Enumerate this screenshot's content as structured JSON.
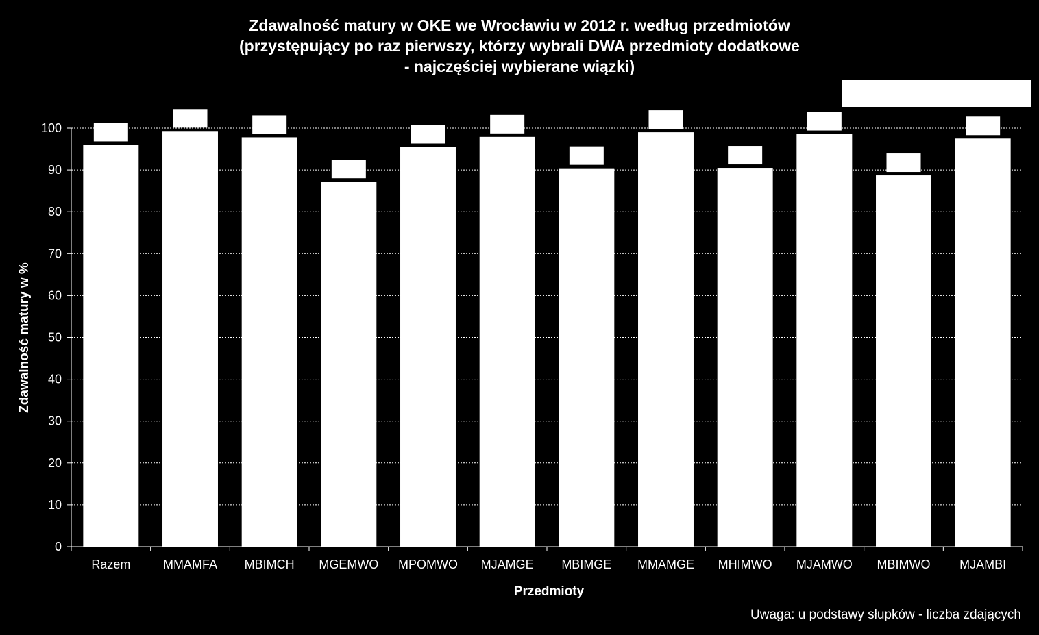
{
  "chart_data": {
    "type": "bar",
    "title": "Zdawalność matury w OKE we Wrocławiu w 2012 r. według przedmiotów\n(przystępujący po raz pierwszy, którzy wybrali DWA przedmioty dodatkowe\n- najczęściej wybierane wiązki)",
    "xlabel": "Przedmioty",
    "ylabel": "Zdawalność matury w %",
    "categories": [
      "Razem",
      "MMAMFA",
      "MBIMCH",
      "MGEMWO",
      "MPOMWO",
      "MJAMGE",
      "MBIMGE",
      "MMAMGE",
      "MHIMWO",
      "MJAMWO",
      "MBIMWO",
      "MJAMBI"
    ],
    "values": [
      96.0,
      99.3,
      97.8,
      87.2,
      95.5,
      97.9,
      90.4,
      99.0,
      90.5,
      98.6,
      88.7,
      97.5
    ],
    "ylim": [
      0,
      100
    ],
    "yticks": [
      0,
      10,
      20,
      30,
      40,
      50,
      60,
      70,
      80,
      90,
      100
    ],
    "grid": true,
    "bar_color": "#ffffff",
    "background": "#000000",
    "gridline_color": "#ffffff"
  },
  "note": "Uwaga: u podstawy słupków - liczba zdających"
}
